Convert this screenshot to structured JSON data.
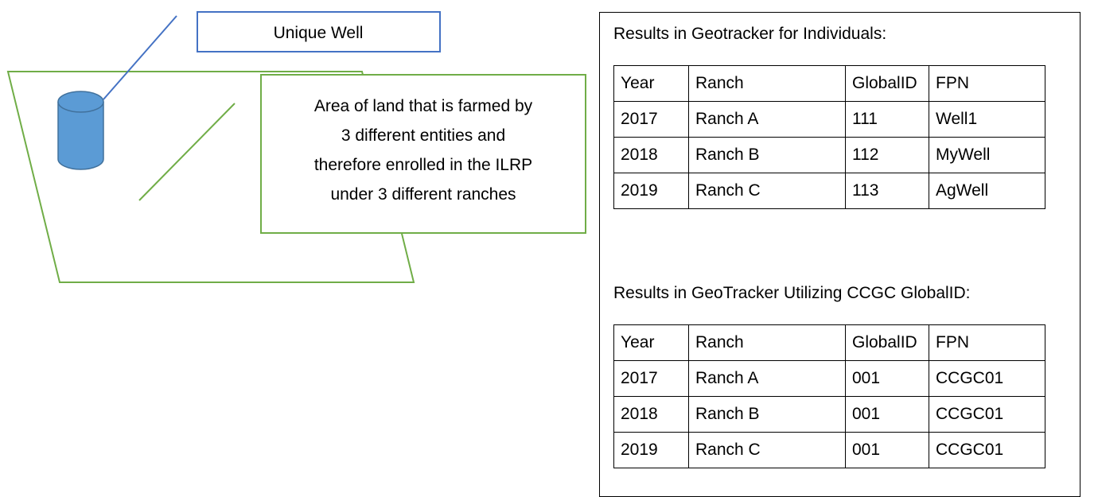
{
  "diagram": {
    "well_label": "Unique Well",
    "area_label": [
      "Area of land that is farmed by",
      "3 different entities and",
      "therefore enrolled in the ILRP",
      "under 3 different ranches"
    ]
  },
  "panel": {
    "sections": [
      {
        "title": "Results in Geotracker for Individuals:",
        "table": {
          "header": [
            "Year",
            "Ranch",
            "GlobalID",
            "FPN"
          ],
          "rows": [
            [
              "2017",
              "Ranch A",
              "111",
              "Well1"
            ],
            [
              "2018",
              "Ranch B",
              "112",
              "MyWell"
            ],
            [
              "2019",
              "Ranch C",
              "113",
              "AgWell"
            ]
          ]
        }
      },
      {
        "title": "Results in GeoTracker Utilizing CCGC GlobalID:",
        "table": {
          "header": [
            "Year",
            "Ranch",
            "GlobalID",
            "FPN"
          ],
          "rows": [
            [
              "2017",
              "Ranch A",
              "001",
              "CCGC01"
            ],
            [
              "2018",
              "Ranch B",
              "001",
              "CCGC01"
            ],
            [
              "2019",
              "Ranch C",
              "001",
              "CCGC01"
            ]
          ]
        }
      }
    ]
  }
}
